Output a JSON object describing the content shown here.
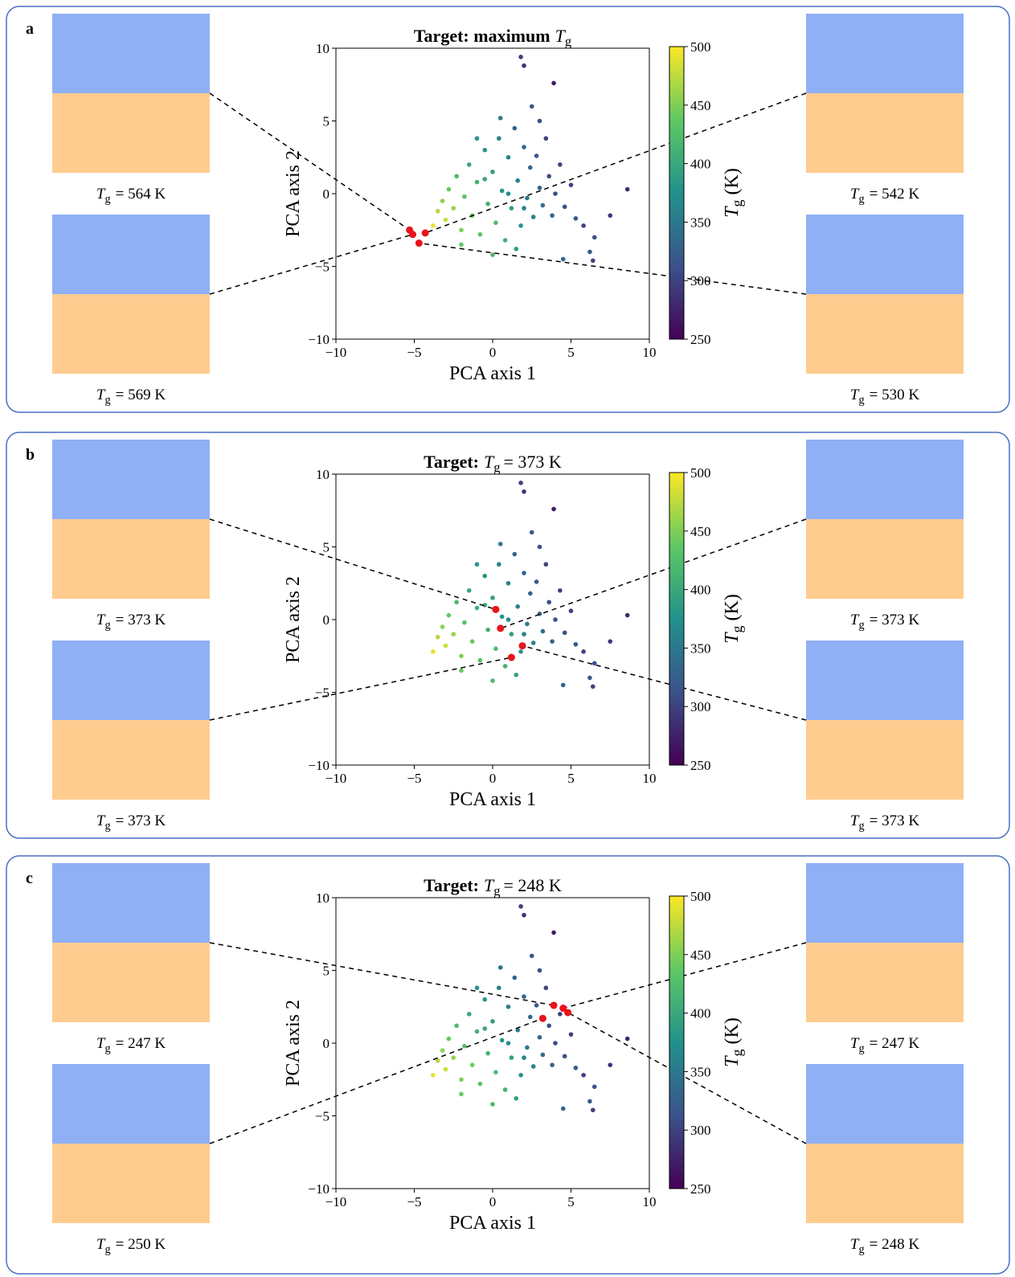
{
  "tg_symbol": "T",
  "tg_subscript": "g",
  "cloud": {
    "x": [
      -3.5,
      -3.2,
      -3.0,
      -2.8,
      -2.5,
      -2.3,
      -2.0,
      -1.8,
      -1.5,
      -1.3,
      -1.0,
      -0.8,
      -0.5,
      -0.3,
      0,
      0.2,
      0.4,
      0.6,
      0.8,
      1.0,
      1.2,
      1.4,
      1.6,
      1.8,
      2.0,
      2.2,
      2.4,
      2.6,
      2.8,
      3.0,
      3.2,
      3.4,
      3.6,
      3.8,
      4.0,
      4.3,
      4.6,
      5.0,
      5.3,
      5.8,
      6.5,
      7.5,
      8.6,
      1.8,
      2.0,
      3.9,
      2.5,
      0.5,
      -1.0,
      -2.0,
      0.0,
      4.5,
      6.2,
      6.4,
      -3.8,
      1.5,
      3.0,
      -0.5,
      1.0,
      2.0
    ],
    "y": [
      -1.2,
      -0.5,
      -1.8,
      0.3,
      -1.0,
      1.2,
      -2.5,
      -0.2,
      2.0,
      -1.5,
      0.8,
      -2.8,
      3.0,
      -0.7,
      1.5,
      -2.0,
      3.8,
      0.2,
      -3.2,
      2.5,
      -1.0,
      4.5,
      0.9,
      -2.2,
      3.2,
      -0.3,
      1.8,
      -1.6,
      2.6,
      0.4,
      -0.8,
      3.8,
      1.2,
      -1.5,
      0.0,
      2.0,
      -0.9,
      0.6,
      -1.7,
      -2.2,
      -3.0,
      -1.5,
      0.3,
      9.4,
      8.8,
      7.6,
      6.0,
      5.2,
      3.8,
      -3.5,
      -4.2,
      -4.5,
      -4.0,
      -4.6,
      -2.2,
      -3.8,
      5.0,
      1.0,
      0.0,
      -1.0
    ],
    "tg": [
      470,
      455,
      480,
      440,
      460,
      420,
      450,
      430,
      400,
      440,
      410,
      430,
      380,
      410,
      390,
      420,
      360,
      380,
      410,
      360,
      390,
      330,
      360,
      380,
      330,
      350,
      330,
      360,
      320,
      330,
      340,
      300,
      310,
      330,
      310,
      300,
      310,
      300,
      320,
      300,
      310,
      290,
      280,
      300,
      290,
      270,
      320,
      350,
      380,
      440,
      420,
      330,
      320,
      300,
      490,
      390,
      310,
      400,
      370,
      360
    ]
  },
  "chart_data": [
    {
      "type": "scatter",
      "panel": "a",
      "title": {
        "prefix": "Target: maximum"
      },
      "xlabel": "PCA axis 1",
      "ylabel": "PCA axis 2",
      "xlim": [
        -10,
        10
      ],
      "ylim": [
        -10,
        10
      ],
      "xticks": [
        {
          "value": -10,
          "label": "−10"
        },
        {
          "value": -5,
          "label": "−5"
        },
        0,
        5,
        10
      ],
      "yticks": [
        {
          "value": -10,
          "label": "−10"
        },
        {
          "value": -5,
          "label": "−5"
        },
        0,
        5,
        10
      ],
      "colorbar": {
        "label": "(K)",
        "lim": [
          250,
          500
        ],
        "ticks": [
          250,
          300,
          350,
          400,
          450,
          500
        ]
      },
      "selected": {
        "x": [
          -5.3,
          -5.1,
          -4.3,
          -4.7
        ],
        "y": [
          -2.5,
          -2.8,
          -2.7,
          -3.4
        ],
        "color": "#e8141b"
      },
      "molecules": [
        {
          "value_label": "= 564 K"
        },
        {
          "value_label": "= 569 K"
        },
        {
          "value_label": "= 542 K"
        },
        {
          "value_label": "= 530 K"
        }
      ]
    },
    {
      "type": "scatter",
      "panel": "b",
      "title": {
        "prefix": "Target:",
        "suffix": "= 373 K"
      },
      "xlabel": "PCA axis 1",
      "ylabel": "PCA axis 2",
      "xlim": [
        -10,
        10
      ],
      "ylim": [
        -10,
        10
      ],
      "xticks": [
        {
          "value": -10,
          "label": "−10"
        },
        {
          "value": -5,
          "label": "−5"
        },
        0,
        5,
        10
      ],
      "yticks": [
        {
          "value": -10,
          "label": "−10"
        },
        {
          "value": -5,
          "label": "−5"
        },
        0,
        5,
        10
      ],
      "colorbar": {
        "label": "(K)",
        "lim": [
          250,
          500
        ],
        "ticks": [
          250,
          300,
          350,
          400,
          450,
          500
        ]
      },
      "selected": {
        "x": [
          0.2,
          1.2,
          0.5,
          1.9
        ],
        "y": [
          0.7,
          -2.6,
          -0.6,
          -1.8
        ],
        "color": "#e8141b"
      },
      "molecules": [
        {
          "value_label": "= 373 K"
        },
        {
          "value_label": "= 373 K"
        },
        {
          "value_label": "= 373 K"
        },
        {
          "value_label": "= 373 K"
        }
      ]
    },
    {
      "type": "scatter",
      "panel": "c",
      "title": {
        "prefix": "Target:",
        "suffix": "= 248 K"
      },
      "xlabel": "PCA axis 1",
      "ylabel": "PCA axis 2",
      "xlim": [
        -10,
        10
      ],
      "ylim": [
        -10,
        10
      ],
      "xticks": [
        {
          "value": -10,
          "label": "−10"
        },
        {
          "value": -5,
          "label": "−5"
        },
        0,
        5,
        10
      ],
      "yticks": [
        {
          "value": -10,
          "label": "−10"
        },
        {
          "value": -5,
          "label": "−5"
        },
        0,
        5,
        10
      ],
      "colorbar": {
        "label": "(K)",
        "lim": [
          250,
          500
        ],
        "ticks": [
          250,
          300,
          350,
          400,
          450,
          500
        ]
      },
      "selected": {
        "x": [
          3.9,
          3.2,
          4.5,
          4.8
        ],
        "y": [
          2.6,
          1.7,
          2.4,
          2.1
        ],
        "color": "#e8141b"
      },
      "molecules": [
        {
          "value_label": "= 247 K"
        },
        {
          "value_label": "= 250 K"
        },
        {
          "value_label": "= 247 K"
        },
        {
          "value_label": "= 248 K"
        }
      ]
    }
  ]
}
